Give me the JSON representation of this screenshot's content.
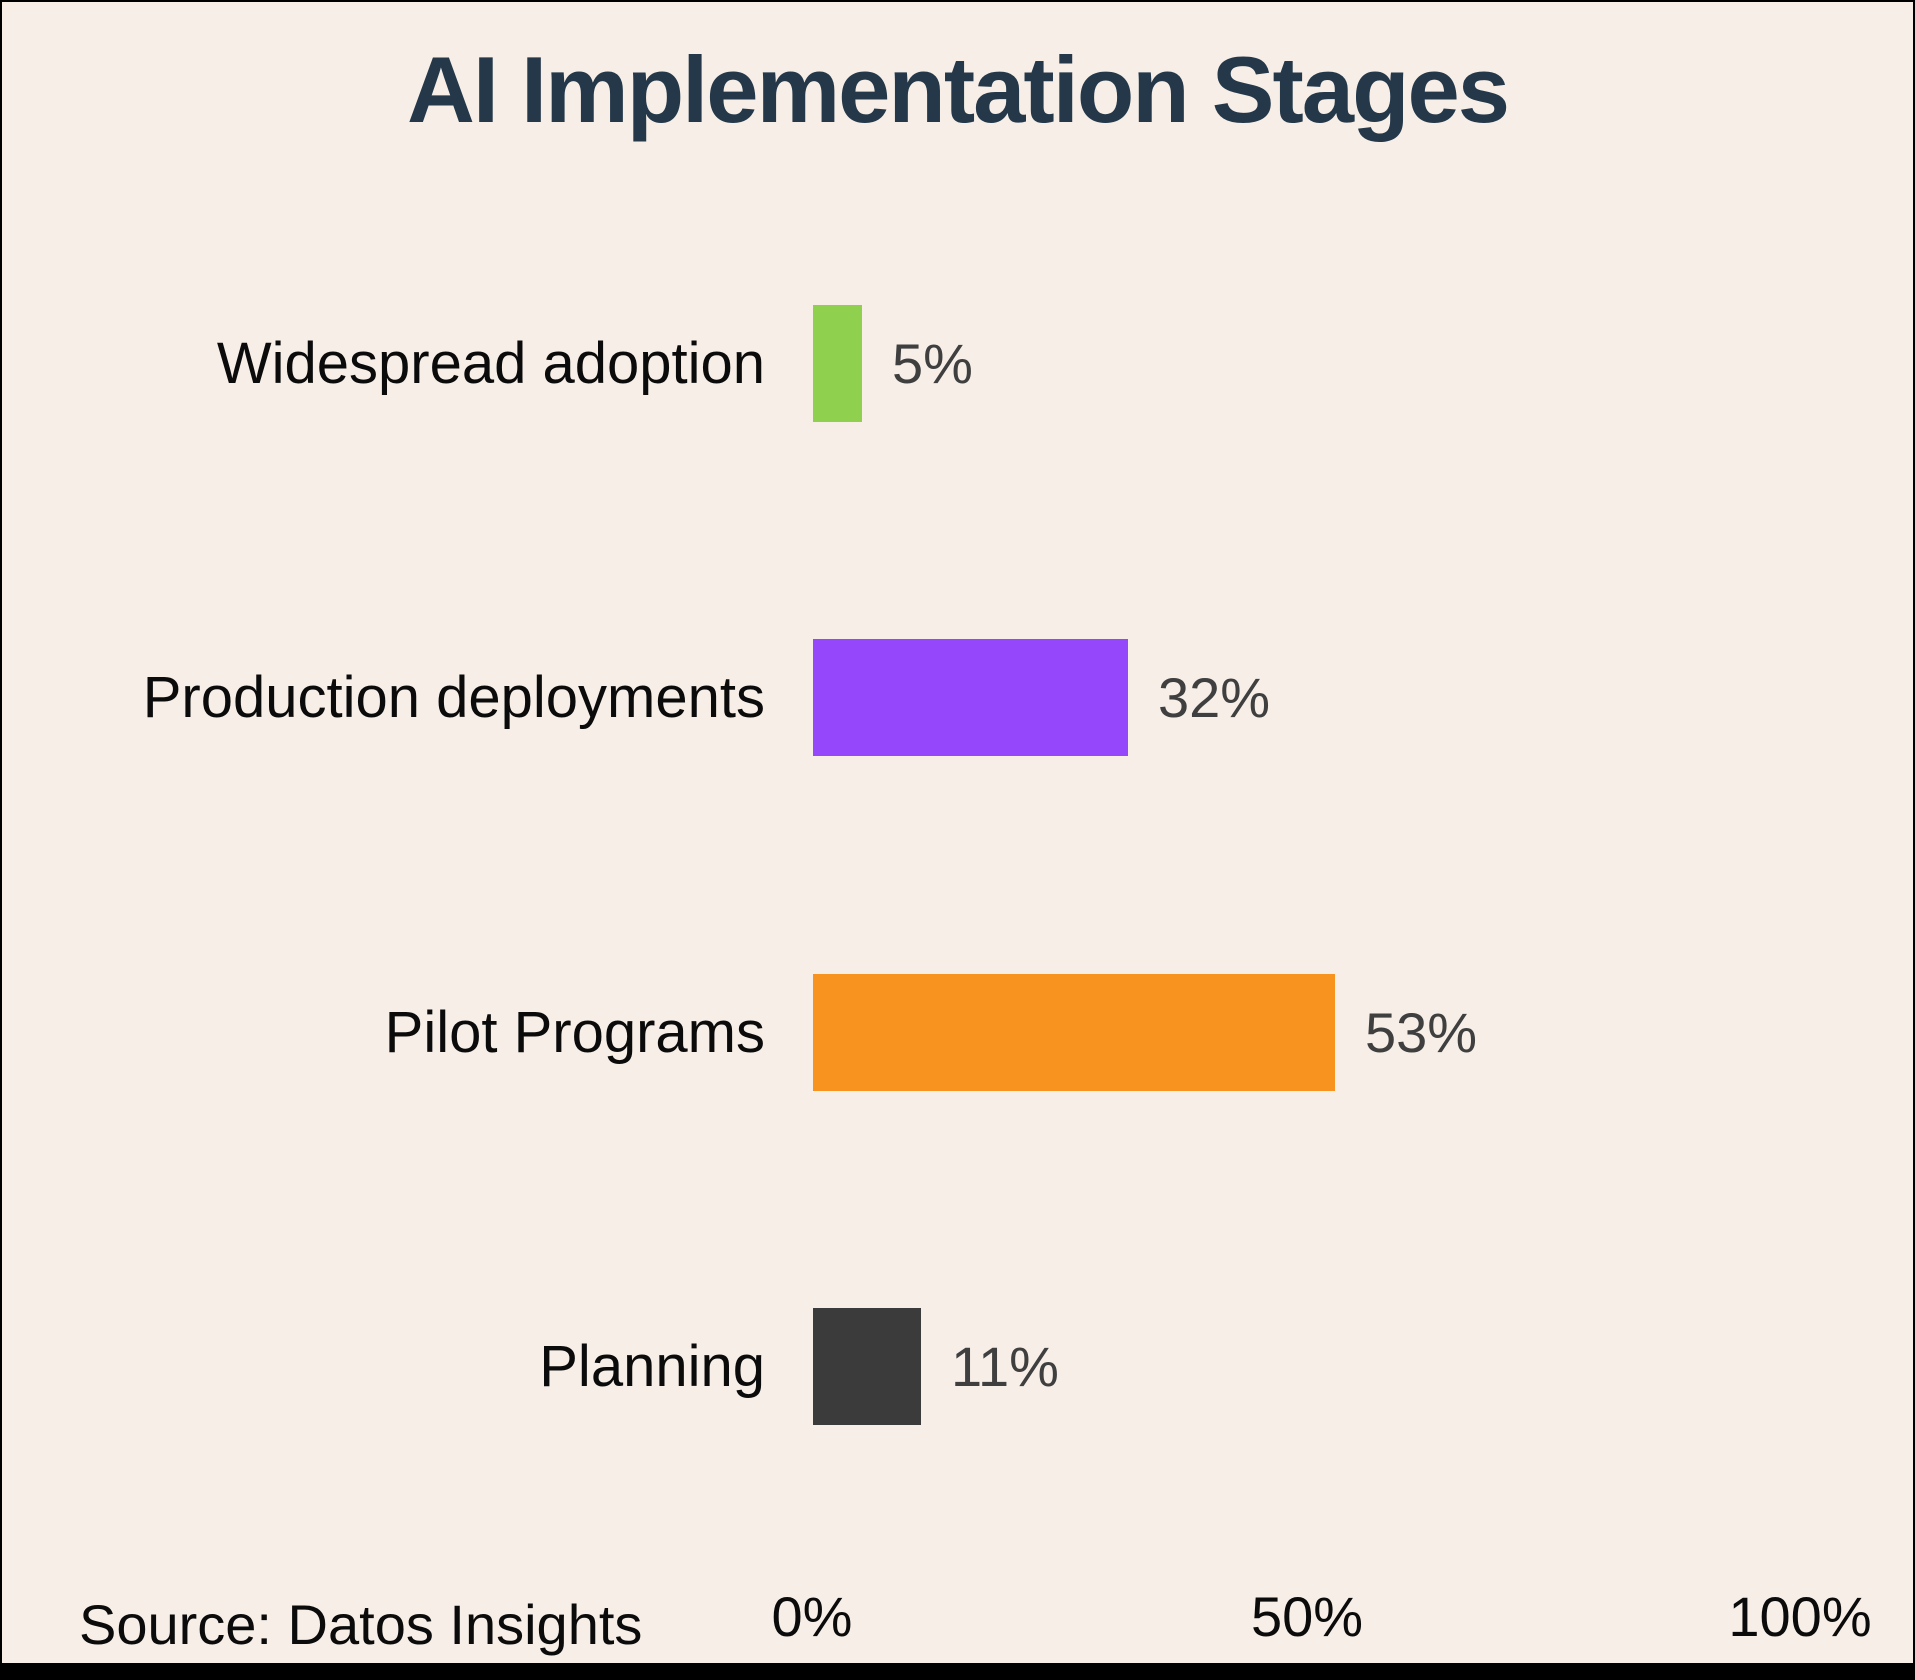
{
  "title": "AI Implementation Stages",
  "source_note": "Source: Datos Insights",
  "colors": {
    "background": "#F6EEE7",
    "title_text": "#24384A",
    "category_text": "#0B0B0B",
    "value_text": "#3F3F3F",
    "frame": "#000000",
    "green": "#8FD14F",
    "purple": "#9447FB",
    "orange": "#F7931E",
    "charcoal": "#3B3B3B"
  },
  "chart_data": {
    "type": "bar",
    "orientation": "horizontal",
    "title": "AI Implementation Stages",
    "categories": [
      "Widespread adoption",
      "Production deployments",
      "Pilot Programs",
      "Planning"
    ],
    "values": [
      5,
      32,
      53,
      11
    ],
    "value_labels": [
      "5%",
      "32%",
      "53%",
      "11%"
    ],
    "bar_colors": [
      "#8FD14F",
      "#9447FB",
      "#F7931E",
      "#3B3B3B"
    ],
    "xlabel": "",
    "ylabel": "",
    "xlim": [
      0,
      100
    ],
    "x_ticks": [
      "0%",
      "50%",
      "100%"
    ],
    "grid": false,
    "legend": "none",
    "source": "Source: Datos Insights"
  }
}
